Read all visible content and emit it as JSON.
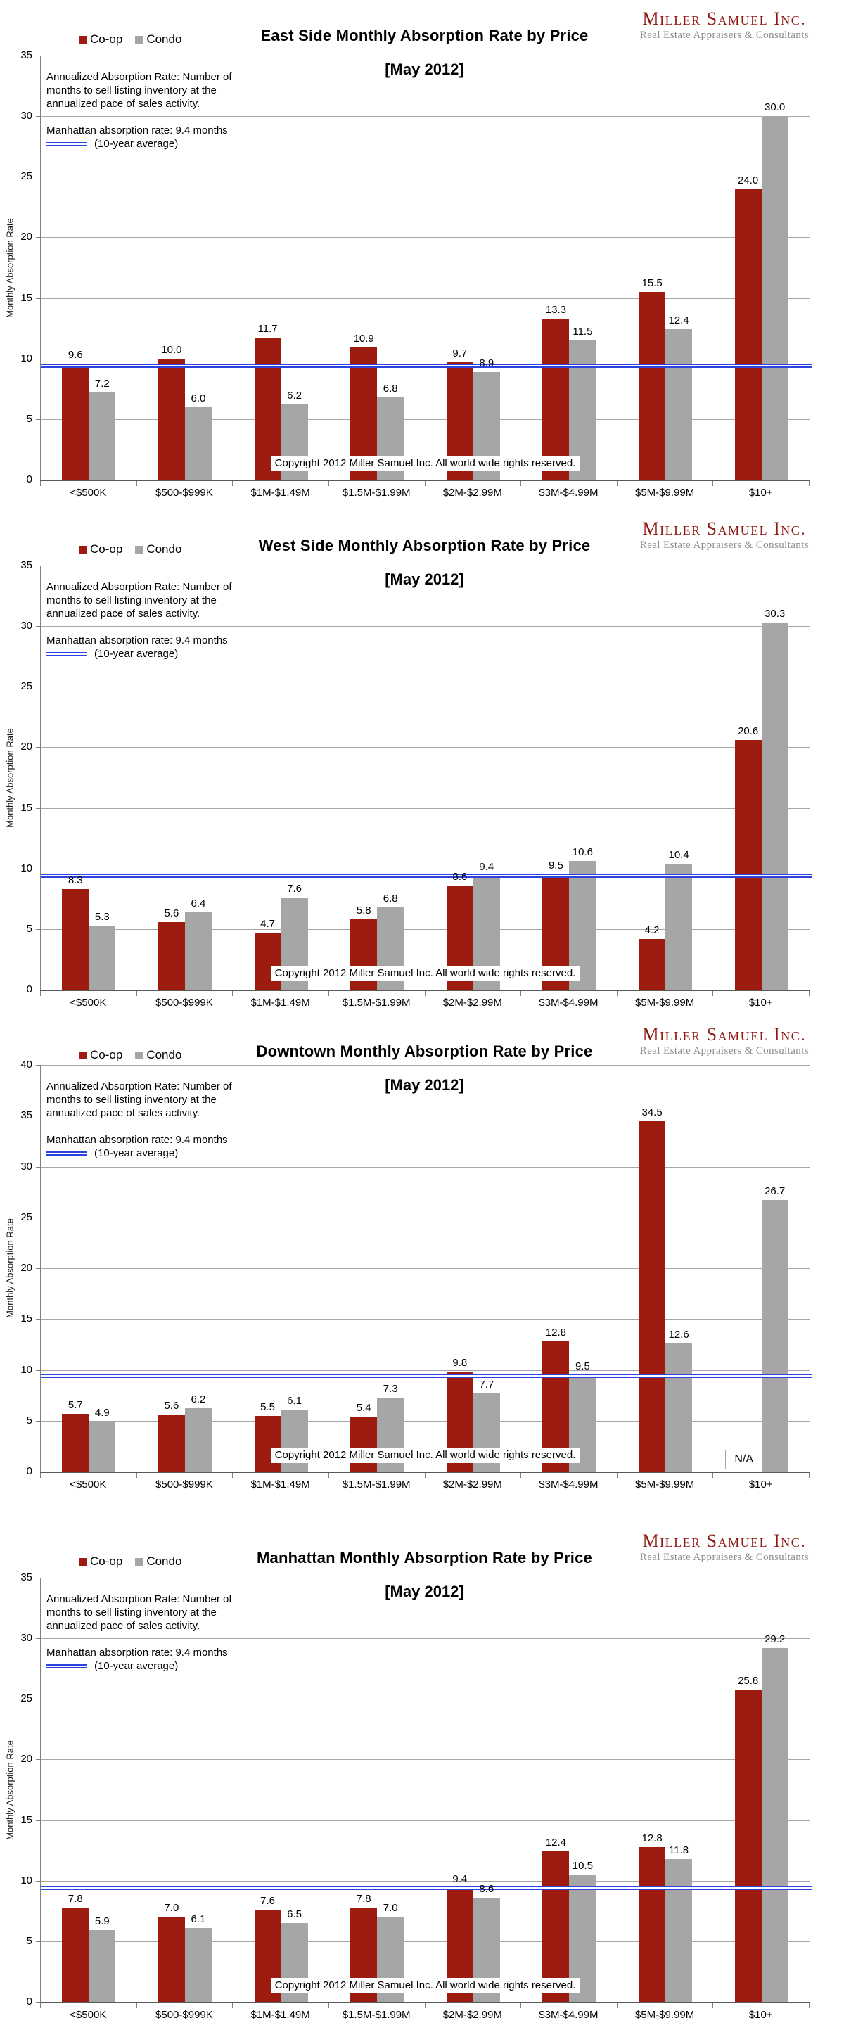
{
  "common": {
    "legend": {
      "coop": "Co-op",
      "condo": "Condo"
    },
    "subtitle": "[May 2012]",
    "logo": {
      "name": "Miller Samuel Inc.",
      "tagline": "Real Estate Appraisers & Consultants"
    },
    "annotations": {
      "definition": "Annualized Absorption Rate: Number of months to sell listing inventory at the annualized pace of sales activity.",
      "reference_line_1": "Manhattan absorption rate: 9.4 months",
      "reference_line_2": "(10-year average)"
    },
    "y_axis_title": "Monthly Absorption Rate",
    "copyright": "Copyright 2012 Miller Samuel Inc.  All world wide rights reserved."
  },
  "colors": {
    "coop": "#9E1B10",
    "condo": "#A6A6A6",
    "reference_line": "#2B44E0",
    "logo_name": "#8E1B12",
    "gridline": "#A6A6A6",
    "axis": "#808080"
  },
  "chart_data": [
    {
      "type": "bar",
      "title": "East Side Monthly Absorption Rate by Price",
      "subtitle": "[May 2012]",
      "ylabel": "Monthly Absorption Rate",
      "ylim": [
        0,
        35
      ],
      "ytick_step": 5,
      "grid": true,
      "legend_position": "top-left",
      "categories": [
        "<$500K",
        "$500-$999K",
        "$1M-$1.49M",
        "$1.5M-$1.99M",
        "$2M-$2.99M",
        "$3M-$4.99M",
        "$5M-$9.99M",
        "$10+"
      ],
      "series": [
        {
          "name": "Co-op",
          "values": [
            9.6,
            10.0,
            11.7,
            10.9,
            9.7,
            13.3,
            15.5,
            24.0
          ]
        },
        {
          "name": "Condo",
          "values": [
            7.2,
            6.0,
            6.2,
            6.8,
            8.9,
            11.5,
            12.4,
            30.0
          ]
        }
      ],
      "reference_line": {
        "value": 9.4,
        "label": "Manhattan absorption rate: 9.4 months (10-year average)"
      }
    },
    {
      "type": "bar",
      "title": "West Side Monthly Absorption Rate by Price",
      "subtitle": "[May 2012]",
      "ylabel": "Monthly Absorption Rate",
      "ylim": [
        0,
        35
      ],
      "ytick_step": 5,
      "grid": true,
      "legend_position": "top-left",
      "categories": [
        "<$500K",
        "$500-$999K",
        "$1M-$1.49M",
        "$1.5M-$1.99M",
        "$2M-$2.99M",
        "$3M-$4.99M",
        "$5M-$9.99M",
        "$10+"
      ],
      "series": [
        {
          "name": "Co-op",
          "values": [
            8.3,
            5.6,
            4.7,
            5.8,
            8.6,
            9.5,
            4.2,
            20.6
          ]
        },
        {
          "name": "Condo",
          "values": [
            5.3,
            6.4,
            7.6,
            6.8,
            9.4,
            10.6,
            10.4,
            30.3
          ]
        }
      ],
      "reference_line": {
        "value": 9.4,
        "label": "Manhattan absorption rate: 9.4 months (10-year average)"
      }
    },
    {
      "type": "bar",
      "title": "Downtown Monthly Absorption Rate by Price",
      "subtitle": "[May 2012]",
      "ylabel": "Monthly Absorption Rate",
      "ylim": [
        0,
        40
      ],
      "ytick_step": 5,
      "grid": true,
      "legend_position": "top-left",
      "na_label": "N/A",
      "categories": [
        "<$500K",
        "$500-$999K",
        "$1M-$1.49M",
        "$1.5M-$1.99M",
        "$2M-$2.99M",
        "$3M-$4.99M",
        "$5M-$9.99M",
        "$10+"
      ],
      "series": [
        {
          "name": "Co-op",
          "values": [
            5.7,
            5.6,
            5.5,
            5.4,
            9.8,
            12.8,
            34.5,
            null
          ]
        },
        {
          "name": "Condo",
          "values": [
            4.9,
            6.2,
            6.1,
            7.3,
            7.7,
            9.5,
            12.6,
            26.7
          ]
        }
      ],
      "reference_line": {
        "value": 9.4,
        "label": "Manhattan absorption rate: 9.4 months (10-year average)"
      }
    },
    {
      "type": "bar",
      "title": "Manhattan Monthly Absorption Rate by Price",
      "subtitle": "[May 2012]",
      "ylabel": "Monthly Absorption Rate",
      "ylim": [
        0,
        35
      ],
      "ytick_step": 5,
      "grid": true,
      "legend_position": "top-left",
      "categories": [
        "<$500K",
        "$500-$999K",
        "$1M-$1.49M",
        "$1.5M-$1.99M",
        "$2M-$2.99M",
        "$3M-$4.99M",
        "$5M-$9.99M",
        "$10+"
      ],
      "series": [
        {
          "name": "Co-op",
          "values": [
            7.8,
            7.0,
            7.6,
            7.8,
            9.4,
            12.4,
            12.8,
            25.8
          ]
        },
        {
          "name": "Condo",
          "values": [
            5.9,
            6.1,
            6.5,
            7.0,
            8.6,
            10.5,
            11.8,
            29.2
          ]
        }
      ],
      "reference_line": {
        "value": 9.4,
        "label": "Manhattan absorption rate: 9.4 months (10-year average)"
      }
    }
  ]
}
